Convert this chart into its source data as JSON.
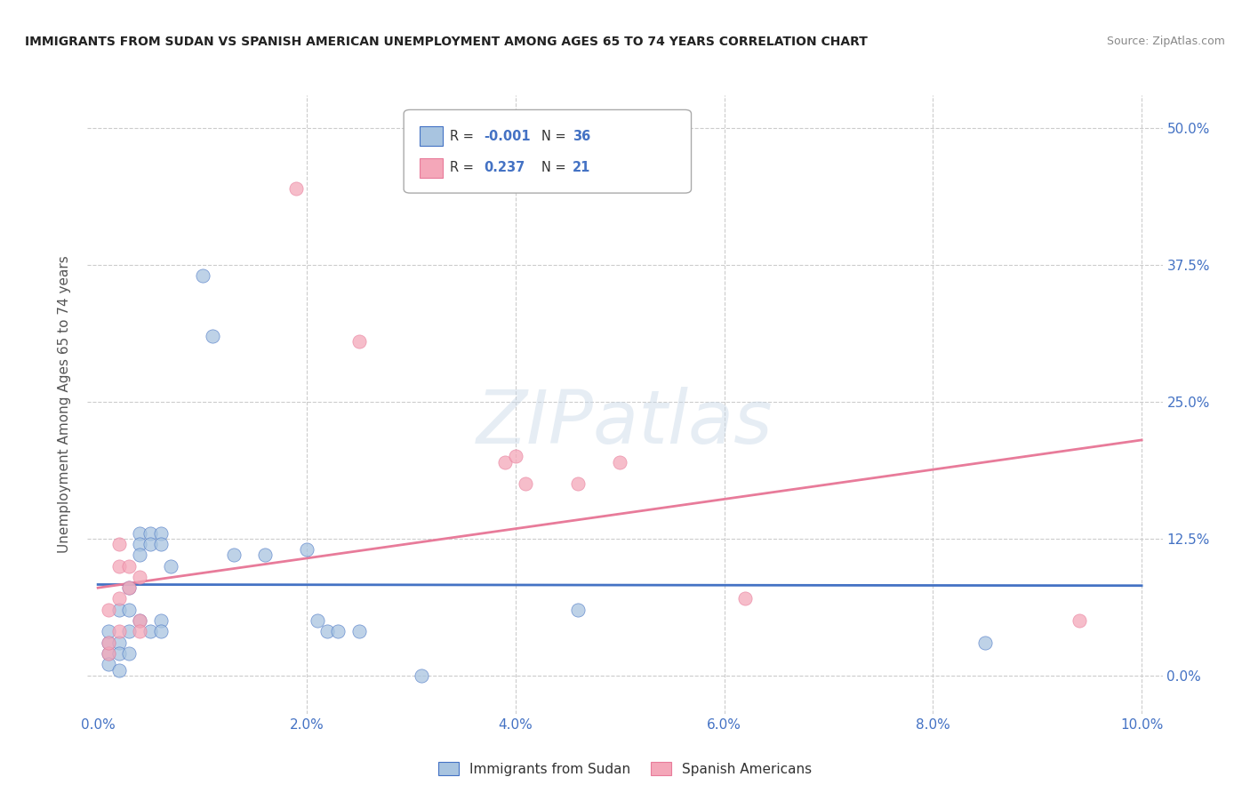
{
  "title": "IMMIGRANTS FROM SUDAN VS SPANISH AMERICAN UNEMPLOYMENT AMONG AGES 65 TO 74 YEARS CORRELATION CHART",
  "source": "Source: ZipAtlas.com",
  "xlabel_ticks": [
    "0.0%",
    "2.0%",
    "4.0%",
    "6.0%",
    "8.0%",
    "10.0%"
  ],
  "xlabel_vals": [
    0.0,
    0.02,
    0.04,
    0.06,
    0.08,
    0.1
  ],
  "ylabel_ticks": [
    "0.0%",
    "12.5%",
    "25.0%",
    "37.5%",
    "50.0%"
  ],
  "ylabel_vals": [
    0.0,
    0.125,
    0.25,
    0.375,
    0.5
  ],
  "xlim": [
    -0.001,
    0.102
  ],
  "ylim": [
    -0.035,
    0.53
  ],
  "ylabel": "Unemployment Among Ages 65 to 74 years",
  "legend_labels": [
    "Immigrants from Sudan",
    "Spanish Americans"
  ],
  "legend_R": [
    "-0.001",
    "0.237"
  ],
  "legend_N": [
    "36",
    "21"
  ],
  "blue_color": "#a8c4e0",
  "pink_color": "#f4a7b9",
  "blue_line_color": "#4472c4",
  "pink_line_color": "#e87b9a",
  "blue_dots": [
    [
      0.001,
      0.03
    ],
    [
      0.001,
      0.02
    ],
    [
      0.001,
      0.04
    ],
    [
      0.001,
      0.01
    ],
    [
      0.002,
      0.06
    ],
    [
      0.002,
      0.03
    ],
    [
      0.002,
      0.02
    ],
    [
      0.002,
      0.005
    ],
    [
      0.003,
      0.08
    ],
    [
      0.003,
      0.06
    ],
    [
      0.003,
      0.04
    ],
    [
      0.003,
      0.02
    ],
    [
      0.004,
      0.13
    ],
    [
      0.004,
      0.12
    ],
    [
      0.004,
      0.11
    ],
    [
      0.004,
      0.05
    ],
    [
      0.005,
      0.13
    ],
    [
      0.005,
      0.12
    ],
    [
      0.005,
      0.04
    ],
    [
      0.006,
      0.13
    ],
    [
      0.006,
      0.12
    ],
    [
      0.006,
      0.05
    ],
    [
      0.006,
      0.04
    ],
    [
      0.007,
      0.1
    ],
    [
      0.01,
      0.365
    ],
    [
      0.011,
      0.31
    ],
    [
      0.013,
      0.11
    ],
    [
      0.016,
      0.11
    ],
    [
      0.02,
      0.115
    ],
    [
      0.021,
      0.05
    ],
    [
      0.022,
      0.04
    ],
    [
      0.023,
      0.04
    ],
    [
      0.025,
      0.04
    ],
    [
      0.031,
      0.0
    ],
    [
      0.046,
      0.06
    ],
    [
      0.085,
      0.03
    ]
  ],
  "pink_dots": [
    [
      0.001,
      0.02
    ],
    [
      0.001,
      0.03
    ],
    [
      0.001,
      0.06
    ],
    [
      0.002,
      0.12
    ],
    [
      0.002,
      0.1
    ],
    [
      0.002,
      0.07
    ],
    [
      0.002,
      0.04
    ],
    [
      0.003,
      0.1
    ],
    [
      0.003,
      0.08
    ],
    [
      0.004,
      0.09
    ],
    [
      0.004,
      0.05
    ],
    [
      0.004,
      0.04
    ],
    [
      0.019,
      0.445
    ],
    [
      0.025,
      0.305
    ],
    [
      0.039,
      0.195
    ],
    [
      0.04,
      0.2
    ],
    [
      0.041,
      0.175
    ],
    [
      0.046,
      0.175
    ],
    [
      0.05,
      0.195
    ],
    [
      0.062,
      0.07
    ],
    [
      0.094,
      0.05
    ]
  ],
  "blue_line_x": [
    0.0,
    0.1
  ],
  "blue_line_y": [
    0.083,
    0.082
  ],
  "pink_line_x": [
    0.0,
    0.1
  ],
  "pink_line_y": [
    0.08,
    0.215
  ],
  "watermark": "ZIPatlas",
  "background_color": "#ffffff"
}
